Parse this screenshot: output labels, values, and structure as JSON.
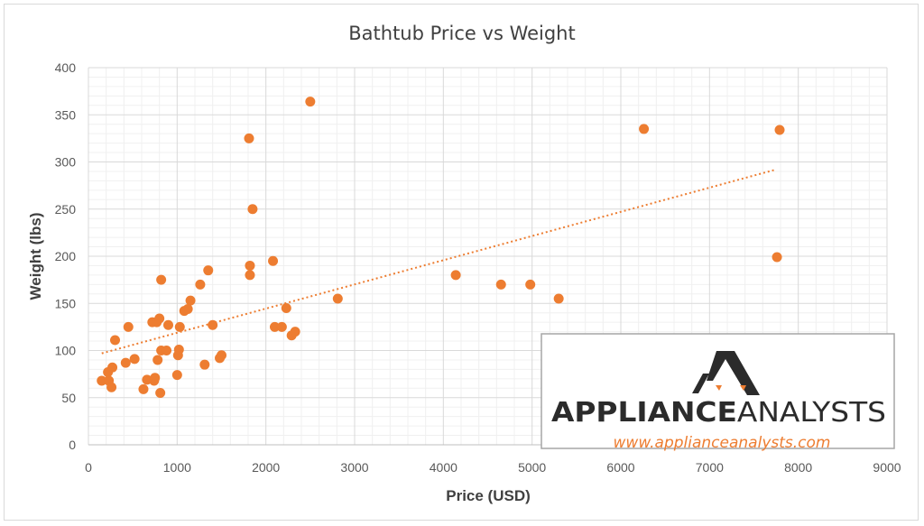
{
  "chart_data": {
    "type": "scatter",
    "title": "Bathtub Price vs Weight",
    "xlabel": "Price (USD)",
    "ylabel": "Weight (lbs)",
    "xlim": [
      0,
      9000
    ],
    "ylim": [
      0,
      400
    ],
    "x_ticks": [
      "0",
      "1000",
      "2000",
      "3000",
      "4000",
      "5000",
      "6000",
      "7000",
      "8000",
      "9000"
    ],
    "y_ticks": [
      "0",
      "50",
      "100",
      "150",
      "200",
      "250",
      "300",
      "350",
      "400"
    ],
    "grid": "major and minor",
    "marker_color": "#ed7d31",
    "trendline": {
      "type": "linear",
      "style": "dotted",
      "color": "#ed7d31",
      "x": [
        150,
        7750
      ],
      "y": [
        97,
        292
      ]
    },
    "series": [
      {
        "points": [
          [
            150,
            68
          ],
          [
            220,
            77
          ],
          [
            230,
            68
          ],
          [
            260,
            61
          ],
          [
            270,
            82
          ],
          [
            300,
            111
          ],
          [
            420,
            87
          ],
          [
            450,
            125
          ],
          [
            520,
            91
          ],
          [
            620,
            59
          ],
          [
            660,
            69
          ],
          [
            720,
            130
          ],
          [
            740,
            68
          ],
          [
            750,
            71
          ],
          [
            770,
            130
          ],
          [
            780,
            90
          ],
          [
            800,
            134
          ],
          [
            810,
            55
          ],
          [
            820,
            100
          ],
          [
            820,
            175
          ],
          [
            880,
            100
          ],
          [
            900,
            127
          ],
          [
            1000,
            74
          ],
          [
            1010,
            95
          ],
          [
            1020,
            101
          ],
          [
            1030,
            125
          ],
          [
            1080,
            142
          ],
          [
            1120,
            144
          ],
          [
            1150,
            153
          ],
          [
            1260,
            170
          ],
          [
            1310,
            85
          ],
          [
            1350,
            185
          ],
          [
            1400,
            127
          ],
          [
            1480,
            92
          ],
          [
            1500,
            95
          ],
          [
            1810,
            325
          ],
          [
            1820,
            190
          ],
          [
            1820,
            180
          ],
          [
            1850,
            250
          ],
          [
            2080,
            195
          ],
          [
            2100,
            125
          ],
          [
            2180,
            125
          ],
          [
            2230,
            145
          ],
          [
            2290,
            116
          ],
          [
            2330,
            120
          ],
          [
            2500,
            364
          ],
          [
            2810,
            155
          ],
          [
            4140,
            180
          ],
          [
            4650,
            170
          ],
          [
            4980,
            170
          ],
          [
            5300,
            155
          ],
          [
            6260,
            335
          ],
          [
            7760,
            199
          ],
          [
            7790,
            334
          ]
        ]
      }
    ]
  },
  "logo": {
    "text_bold": "APPLIANCE",
    "text_light": "ANALYSTS",
    "url": "www.applianceanalysts.com"
  }
}
